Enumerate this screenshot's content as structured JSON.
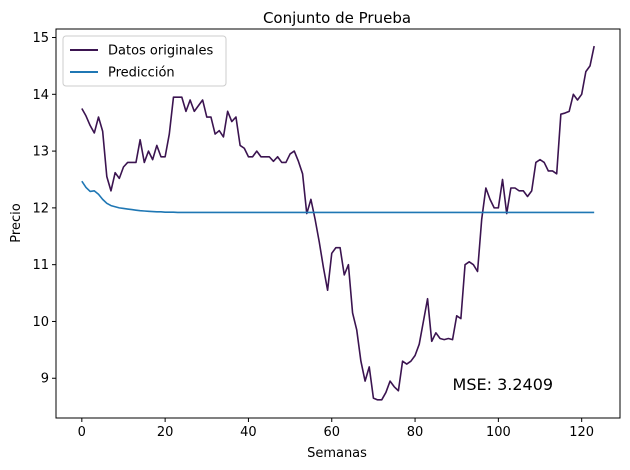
{
  "chart_data": {
    "type": "line",
    "title": "Conjunto de Prueba",
    "xlabel": "Semanas",
    "ylabel": "Precio",
    "xlim": [
      -6.2,
      129.2
    ],
    "ylim": [
      8.3,
      15.15
    ],
    "xticks": [
      0,
      20,
      40,
      60,
      80,
      100,
      120
    ],
    "yticks": [
      9,
      10,
      11,
      12,
      13,
      14,
      15
    ],
    "legend_position": "top-left",
    "grid": false,
    "annotation": {
      "text": "MSE: 3.2409",
      "x": 89,
      "y": 8.9
    },
    "series": [
      {
        "name": "Datos originales",
        "color": "#3b1450",
        "values": [
          13.75,
          13.62,
          13.45,
          13.32,
          13.6,
          13.35,
          12.55,
          12.3,
          12.62,
          12.52,
          12.72,
          12.8,
          12.8,
          12.8,
          13.2,
          12.8,
          13.0,
          12.85,
          13.1,
          12.9,
          12.9,
          13.3,
          13.95,
          13.95,
          13.95,
          13.7,
          13.9,
          13.7,
          13.8,
          13.9,
          13.6,
          13.6,
          13.3,
          13.36,
          13.25,
          13.7,
          13.52,
          13.6,
          13.1,
          13.05,
          12.9,
          12.9,
          13.0,
          12.9,
          12.9,
          12.9,
          12.82,
          12.9,
          12.8,
          12.8,
          12.95,
          13.0,
          12.82,
          12.6,
          11.9,
          12.15,
          11.8,
          11.4,
          10.95,
          10.55,
          11.2,
          11.3,
          11.3,
          10.82,
          11.0,
          10.15,
          9.85,
          9.3,
          8.95,
          9.2,
          8.65,
          8.62,
          8.62,
          8.75,
          8.95,
          8.85,
          8.78,
          9.3,
          9.25,
          9.3,
          9.4,
          9.6,
          10.0,
          10.4,
          9.65,
          9.8,
          9.7,
          9.68,
          9.7,
          9.68,
          10.1,
          10.05,
          11.0,
          11.05,
          11.0,
          10.88,
          11.8,
          12.35,
          12.15,
          12.0,
          12.0,
          12.5,
          11.9,
          12.35,
          12.35,
          12.3,
          12.3,
          12.2,
          12.3,
          12.8,
          12.85,
          12.8,
          12.65,
          12.65,
          12.6,
          13.65,
          13.67,
          13.7,
          14.0,
          13.9,
          14.0,
          14.4,
          14.5,
          14.85
        ]
      },
      {
        "name": "Predicción",
        "color": "#1f77b4",
        "values": [
          12.47,
          12.36,
          12.29,
          12.3,
          12.24,
          12.15,
          12.08,
          12.04,
          12.02,
          12.0,
          11.99,
          11.98,
          11.97,
          11.96,
          11.95,
          11.945,
          11.94,
          11.935,
          11.93,
          11.93,
          11.925,
          11.925,
          11.925,
          11.92,
          11.92,
          11.92,
          11.92,
          11.92,
          11.92,
          11.92,
          11.92,
          11.92,
          11.92,
          11.92,
          11.92,
          11.92,
          11.92,
          11.92,
          11.92,
          11.92,
          11.92,
          11.92,
          11.92,
          11.92,
          11.92,
          11.92,
          11.92,
          11.92,
          11.92,
          11.92,
          11.92,
          11.92,
          11.92,
          11.92,
          11.92,
          11.92,
          11.92,
          11.92,
          11.92,
          11.92,
          11.92,
          11.92,
          11.92,
          11.92,
          11.92,
          11.92,
          11.92,
          11.92,
          11.92,
          11.92,
          11.92,
          11.92,
          11.92,
          11.92,
          11.92,
          11.92,
          11.92,
          11.92,
          11.92,
          11.92,
          11.92,
          11.92,
          11.92,
          11.92,
          11.92,
          11.92,
          11.92,
          11.92,
          11.92,
          11.92,
          11.92,
          11.92,
          11.92,
          11.92,
          11.92,
          11.92,
          11.92,
          11.92,
          11.92,
          11.92,
          11.92,
          11.92,
          11.92,
          11.92,
          11.92,
          11.92,
          11.92,
          11.92,
          11.92,
          11.92,
          11.92,
          11.92,
          11.92,
          11.92,
          11.92,
          11.92,
          11.92,
          11.92,
          11.92,
          11.92,
          11.92,
          11.92,
          11.92,
          11.92
        ]
      }
    ]
  }
}
